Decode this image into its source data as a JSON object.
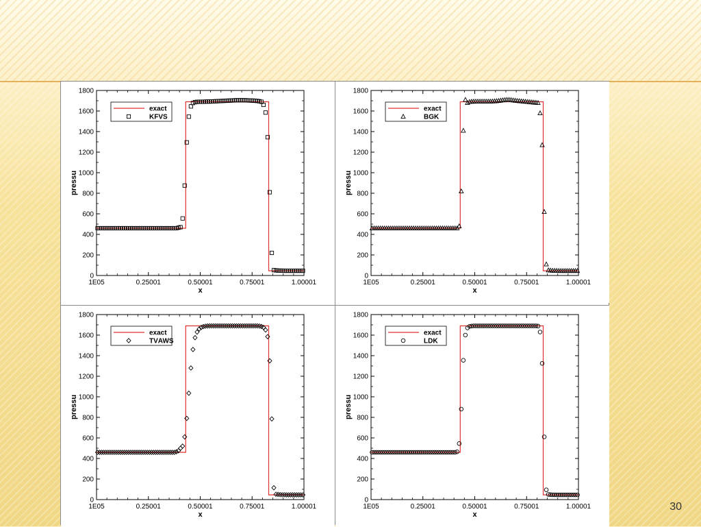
{
  "slide": {
    "page_number": "30"
  },
  "chart_data": [
    {
      "type": "scatter",
      "xlabel": "x",
      "ylabel": "pressu\u0003",
      "xlim": [
        1e-05,
        1.00001
      ],
      "ylim": [
        0,
        1800
      ],
      "xticks": [
        "1E\u000305",
        "0.25001",
        "0.50001",
        "0.75001",
        "1.00001"
      ],
      "yticks": [
        "0",
        "200",
        "400",
        "600",
        "800",
        "1000",
        "1200",
        "1400",
        "1600",
        "1800"
      ],
      "legend_placement": "top-left",
      "marker": "square",
      "series": [
        {
          "name": "exact",
          "kind": "line",
          "color": "#e03030",
          "x": [
            1e-05,
            0.43,
            0.43,
            0.83,
            0.83,
            1.00001
          ],
          "y": [
            460,
            460,
            1690,
            1690,
            46,
            46
          ]
        },
        {
          "name": "KFVS",
          "kind": "marker",
          "x": [
            0.005,
            0.015,
            0.025,
            0.035,
            0.045,
            0.055,
            0.065,
            0.075,
            0.085,
            0.095,
            0.105,
            0.115,
            0.125,
            0.135,
            0.145,
            0.155,
            0.165,
            0.175,
            0.185,
            0.195,
            0.205,
            0.215,
            0.225,
            0.235,
            0.245,
            0.255,
            0.265,
            0.275,
            0.285,
            0.295,
            0.305,
            0.315,
            0.325,
            0.335,
            0.345,
            0.355,
            0.365,
            0.375,
            0.385,
            0.395,
            0.405,
            0.415,
            0.425,
            0.435,
            0.445,
            0.455,
            0.465,
            0.475,
            0.485,
            0.495,
            0.505,
            0.515,
            0.525,
            0.535,
            0.545,
            0.555,
            0.565,
            0.575,
            0.585,
            0.595,
            0.605,
            0.615,
            0.625,
            0.635,
            0.645,
            0.655,
            0.665,
            0.675,
            0.685,
            0.695,
            0.705,
            0.715,
            0.725,
            0.735,
            0.745,
            0.755,
            0.765,
            0.775,
            0.785,
            0.795,
            0.805,
            0.815,
            0.825,
            0.835,
            0.845,
            0.855,
            0.865,
            0.875,
            0.885,
            0.895,
            0.905,
            0.915,
            0.925,
            0.935,
            0.945,
            0.955,
            0.965,
            0.975,
            0.985,
            0.995
          ],
          "y": [
            460,
            460,
            460,
            460,
            460,
            460,
            460,
            460,
            460,
            460,
            460,
            460,
            460,
            460,
            460,
            460,
            460,
            460,
            460,
            460,
            460,
            460,
            460,
            460,
            460,
            460,
            460,
            460,
            460,
            460,
            460,
            460,
            460,
            460,
            460,
            460,
            460,
            460,
            460,
            465,
            470,
            555,
            875,
            1295,
            1545,
            1645,
            1678,
            1686,
            1689,
            1690,
            1690,
            1690,
            1691,
            1692,
            1692,
            1693,
            1694,
            1695,
            1696,
            1697,
            1698,
            1699,
            1700,
            1701,
            1702,
            1703,
            1704,
            1705,
            1705,
            1705,
            1705,
            1705,
            1704,
            1703,
            1702,
            1701,
            1700,
            1698,
            1695,
            1690,
            1660,
            1585,
            1345,
            810,
            220,
            52,
            50,
            48,
            47,
            47,
            46,
            46,
            46,
            46,
            46,
            46,
            46,
            46,
            46,
            46
          ]
        }
      ]
    },
    {
      "type": "scatter",
      "xlabel": "x",
      "ylabel": "pressu\u0003",
      "xlim": [
        1e-05,
        1.00001
      ],
      "ylim": [
        0,
        1800
      ],
      "xticks": [
        "1E\u000305",
        "0.25001",
        "0.50001",
        "0.75001",
        "1.00001"
      ],
      "yticks": [
        "0",
        "200",
        "400",
        "600",
        "800",
        "1000",
        "1200",
        "1400",
        "1600",
        "1800"
      ],
      "legend_placement": "top-left",
      "marker": "triangle",
      "series": [
        {
          "name": "exact",
          "kind": "line",
          "color": "#e03030",
          "x": [
            1e-05,
            0.43,
            0.43,
            0.83,
            0.83,
            1.00001
          ],
          "y": [
            460,
            460,
            1690,
            1690,
            46,
            46
          ]
        },
        {
          "name": "BGK",
          "kind": "marker",
          "x": [
            0.005,
            0.015,
            0.025,
            0.035,
            0.045,
            0.055,
            0.065,
            0.075,
            0.085,
            0.095,
            0.105,
            0.115,
            0.125,
            0.135,
            0.145,
            0.155,
            0.165,
            0.175,
            0.185,
            0.195,
            0.205,
            0.215,
            0.225,
            0.235,
            0.245,
            0.255,
            0.265,
            0.275,
            0.285,
            0.295,
            0.305,
            0.315,
            0.325,
            0.335,
            0.345,
            0.355,
            0.365,
            0.375,
            0.385,
            0.395,
            0.405,
            0.415,
            0.425,
            0.435,
            0.445,
            0.455,
            0.465,
            0.475,
            0.485,
            0.495,
            0.505,
            0.515,
            0.525,
            0.535,
            0.545,
            0.555,
            0.565,
            0.575,
            0.585,
            0.595,
            0.605,
            0.615,
            0.625,
            0.635,
            0.645,
            0.655,
            0.665,
            0.675,
            0.685,
            0.695,
            0.705,
            0.715,
            0.725,
            0.735,
            0.745,
            0.755,
            0.765,
            0.775,
            0.785,
            0.795,
            0.805,
            0.815,
            0.825,
            0.835,
            0.845,
            0.855,
            0.865,
            0.875,
            0.885,
            0.895,
            0.905,
            0.915,
            0.925,
            0.935,
            0.945,
            0.955,
            0.965,
            0.975,
            0.985,
            0.995
          ],
          "y": [
            460,
            460,
            460,
            460,
            460,
            460,
            460,
            460,
            460,
            460,
            460,
            460,
            460,
            460,
            460,
            460,
            460,
            460,
            460,
            460,
            460,
            460,
            460,
            460,
            460,
            460,
            460,
            460,
            460,
            460,
            460,
            460,
            460,
            460,
            460,
            460,
            460,
            460,
            460,
            460,
            460,
            460,
            480,
            820,
            1410,
            1710,
            1680,
            1690,
            1692,
            1693,
            1694,
            1694,
            1694,
            1694,
            1694,
            1694,
            1694,
            1694,
            1695,
            1696,
            1698,
            1700,
            1703,
            1706,
            1708,
            1710,
            1710,
            1708,
            1705,
            1702,
            1700,
            1698,
            1696,
            1694,
            1692,
            1690,
            1688,
            1686,
            1684,
            1682,
            1680,
            1580,
            1270,
            620,
            110,
            52,
            50,
            48,
            47,
            47,
            46,
            46,
            46,
            46,
            46,
            46,
            46,
            46,
            46,
            46
          ]
        }
      ]
    },
    {
      "type": "scatter",
      "xlabel": "x",
      "ylabel": "pressu\u0003",
      "xlim": [
        1e-05,
        1.00001
      ],
      "ylim": [
        0,
        1800
      ],
      "xticks": [
        "1E\u000305",
        "0.25001",
        "0.50001",
        "0.75001",
        "1.00001"
      ],
      "yticks": [
        "0",
        "200",
        "400",
        "600",
        "800",
        "1000",
        "1200",
        "1400",
        "1600",
        "1800"
      ],
      "legend_placement": "top-left",
      "marker": "diamond",
      "series": [
        {
          "name": "exact",
          "kind": "line",
          "color": "#e03030",
          "x": [
            1e-05,
            0.43,
            0.43,
            0.83,
            0.83,
            1.00001
          ],
          "y": [
            460,
            460,
            1690,
            1690,
            46,
            46
          ]
        },
        {
          "name": "TV\u0003AWS",
          "kind": "marker",
          "x": [
            0.005,
            0.015,
            0.025,
            0.035,
            0.045,
            0.055,
            0.065,
            0.075,
            0.085,
            0.095,
            0.105,
            0.115,
            0.125,
            0.135,
            0.145,
            0.155,
            0.165,
            0.175,
            0.185,
            0.195,
            0.205,
            0.215,
            0.225,
            0.235,
            0.245,
            0.255,
            0.265,
            0.275,
            0.285,
            0.295,
            0.305,
            0.315,
            0.325,
            0.335,
            0.345,
            0.355,
            0.365,
            0.375,
            0.385,
            0.395,
            0.405,
            0.415,
            0.425,
            0.435,
            0.445,
            0.455,
            0.465,
            0.475,
            0.485,
            0.495,
            0.505,
            0.515,
            0.525,
            0.535,
            0.545,
            0.555,
            0.565,
            0.575,
            0.585,
            0.595,
            0.605,
            0.615,
            0.625,
            0.635,
            0.645,
            0.655,
            0.665,
            0.675,
            0.685,
            0.695,
            0.705,
            0.715,
            0.725,
            0.735,
            0.745,
            0.755,
            0.765,
            0.775,
            0.785,
            0.795,
            0.805,
            0.815,
            0.825,
            0.835,
            0.845,
            0.855,
            0.865,
            0.875,
            0.885,
            0.895,
            0.905,
            0.915,
            0.925,
            0.935,
            0.945,
            0.955,
            0.965,
            0.975,
            0.985,
            0.995
          ],
          "y": [
            460,
            460,
            460,
            460,
            460,
            460,
            460,
            460,
            460,
            460,
            460,
            460,
            460,
            460,
            460,
            460,
            460,
            460,
            460,
            460,
            460,
            460,
            460,
            460,
            460,
            460,
            460,
            460,
            460,
            460,
            460,
            460,
            460,
            460,
            460,
            460,
            460,
            460,
            465,
            475,
            500,
            520,
            610,
            790,
            1035,
            1280,
            1460,
            1575,
            1630,
            1660,
            1675,
            1683,
            1687,
            1689,
            1690,
            1690,
            1690,
            1690,
            1690,
            1690,
            1690,
            1690,
            1690,
            1690,
            1690,
            1690,
            1690,
            1690,
            1690,
            1690,
            1690,
            1690,
            1690,
            1690,
            1690,
            1690,
            1690,
            1690,
            1688,
            1684,
            1675,
            1650,
            1585,
            1350,
            785,
            115,
            52,
            50,
            48,
            47,
            47,
            46,
            46,
            46,
            46,
            46,
            46,
            46,
            46,
            46
          ]
        }
      ]
    },
    {
      "type": "scatter",
      "xlabel": "x",
      "ylabel": "pressu\u0003",
      "xlim": [
        1e-05,
        1.00001
      ],
      "ylim": [
        0,
        1800
      ],
      "xticks": [
        "1E\u000305",
        "0.25001",
        "0.50001",
        "0.75001",
        "1.00001"
      ],
      "yticks": [
        "0",
        "200",
        "400",
        "600",
        "800",
        "1000",
        "1200",
        "1400",
        "1600",
        "1800"
      ],
      "legend_placement": "top-left",
      "marker": "circle",
      "series": [
        {
          "name": "exact",
          "kind": "line",
          "color": "#e03030",
          "x": [
            1e-05,
            0.43,
            0.43,
            0.83,
            0.83,
            1.00001
          ],
          "y": [
            460,
            460,
            1690,
            1690,
            46,
            46
          ]
        },
        {
          "name": "LDK",
          "kind": "marker",
          "x": [
            0.005,
            0.015,
            0.025,
            0.035,
            0.045,
            0.055,
            0.065,
            0.075,
            0.085,
            0.095,
            0.105,
            0.115,
            0.125,
            0.135,
            0.145,
            0.155,
            0.165,
            0.175,
            0.185,
            0.195,
            0.205,
            0.215,
            0.225,
            0.235,
            0.245,
            0.255,
            0.265,
            0.275,
            0.285,
            0.295,
            0.305,
            0.315,
            0.325,
            0.335,
            0.345,
            0.355,
            0.365,
            0.375,
            0.385,
            0.395,
            0.405,
            0.415,
            0.425,
            0.435,
            0.445,
            0.455,
            0.465,
            0.475,
            0.485,
            0.495,
            0.505,
            0.515,
            0.525,
            0.535,
            0.545,
            0.555,
            0.565,
            0.575,
            0.585,
            0.595,
            0.605,
            0.615,
            0.625,
            0.635,
            0.645,
            0.655,
            0.665,
            0.675,
            0.685,
            0.695,
            0.705,
            0.715,
            0.725,
            0.735,
            0.745,
            0.755,
            0.765,
            0.775,
            0.785,
            0.795,
            0.805,
            0.815,
            0.825,
            0.835,
            0.845,
            0.855,
            0.865,
            0.875,
            0.885,
            0.895,
            0.905,
            0.915,
            0.925,
            0.935,
            0.945,
            0.955,
            0.965,
            0.975,
            0.985,
            0.995
          ],
          "y": [
            460,
            460,
            460,
            460,
            460,
            460,
            460,
            460,
            460,
            460,
            460,
            460,
            460,
            460,
            460,
            460,
            460,
            460,
            460,
            460,
            460,
            460,
            460,
            460,
            460,
            460,
            460,
            460,
            460,
            460,
            460,
            460,
            460,
            460,
            460,
            460,
            460,
            460,
            460,
            460,
            460,
            465,
            545,
            880,
            1355,
            1600,
            1670,
            1685,
            1688,
            1690,
            1690,
            1690,
            1690,
            1690,
            1690,
            1690,
            1690,
            1690,
            1690,
            1690,
            1690,
            1690,
            1690,
            1690,
            1690,
            1690,
            1690,
            1690,
            1690,
            1690,
            1690,
            1690,
            1690,
            1690,
            1690,
            1690,
            1690,
            1690,
            1690,
            1690,
            1688,
            1630,
            1325,
            610,
            95,
            50,
            48,
            47,
            47,
            46,
            46,
            46,
            46,
            46,
            46,
            46,
            46,
            46,
            46,
            46
          ]
        }
      ]
    }
  ]
}
